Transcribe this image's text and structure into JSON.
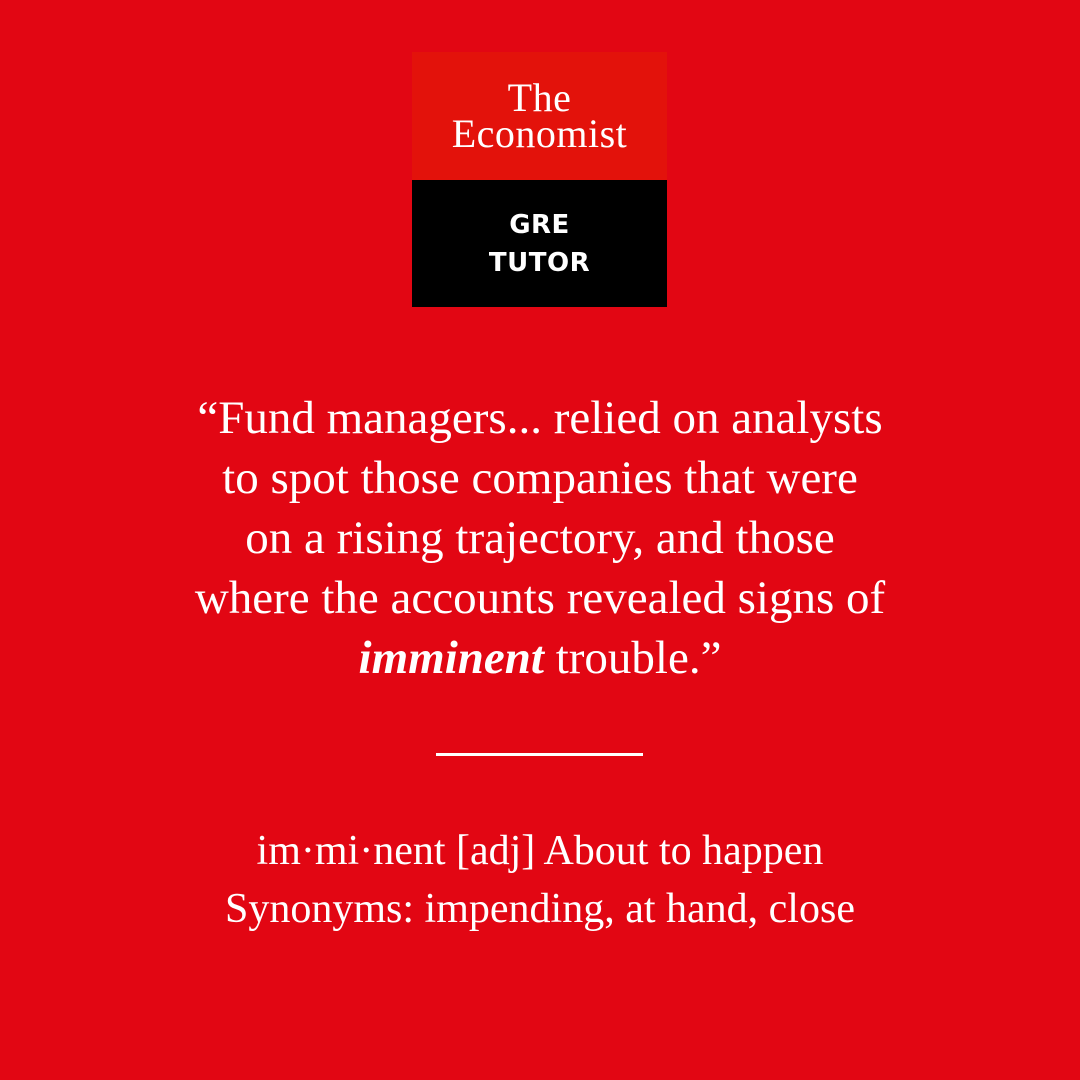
{
  "logo": {
    "line1": "The",
    "line2": "Economist",
    "sub1": "GRE",
    "sub2": "TUTOR"
  },
  "quote": {
    "line1": "“Fund managers... relied on analysts",
    "line2": "to spot those companies that were",
    "line3": "on a rising trajectory, and those",
    "line4": "where the accounts revealed signs of",
    "keyword": "imminent",
    "line5_rest": " trouble.”"
  },
  "definition": {
    "line1": "im·mi·nent [adj] About to happen",
    "line2": "Synonyms: impending, at hand, close"
  },
  "colors": {
    "background": "#e20613",
    "logo_red": "#e3120b",
    "logo_black": "#000000",
    "text": "#ffffff"
  }
}
